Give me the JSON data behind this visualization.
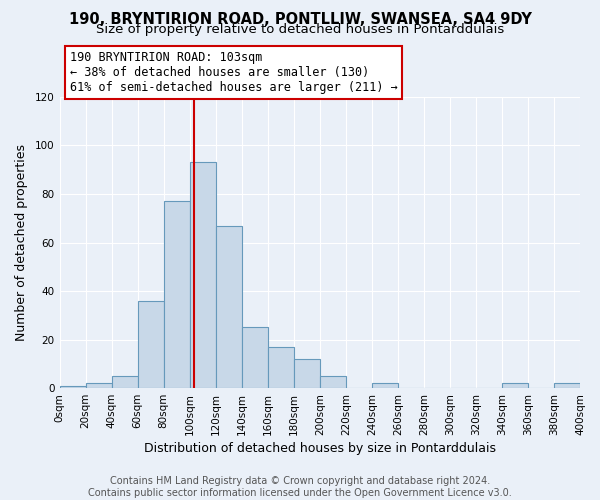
{
  "title": "190, BRYNTIRION ROAD, PONTLLIW, SWANSEA, SA4 9DY",
  "subtitle": "Size of property relative to detached houses in Pontarddulais",
  "xlabel": "Distribution of detached houses by size in Pontarddulais",
  "ylabel": "Number of detached properties",
  "footer_line1": "Contains HM Land Registry data © Crown copyright and database right 2024.",
  "footer_line2": "Contains public sector information licensed under the Open Government Licence v3.0.",
  "bar_edges": [
    0,
    20,
    40,
    60,
    80,
    100,
    120,
    140,
    160,
    180,
    200,
    220,
    240,
    260,
    280,
    300,
    320,
    340,
    360,
    380,
    400
  ],
  "bar_heights": [
    1,
    2,
    5,
    36,
    77,
    93,
    67,
    25,
    17,
    12,
    5,
    0,
    2,
    0,
    0,
    0,
    0,
    2,
    0,
    2
  ],
  "bar_color": "#c8d8e8",
  "bar_edge_color": "#6699bb",
  "vline_x": 103,
  "vline_color": "#cc0000",
  "annotation_line1": "190 BRYNTIRION ROAD: 103sqm",
  "annotation_line2": "← 38% of detached houses are smaller (130)",
  "annotation_line3": "61% of semi-detached houses are larger (211) →",
  "box_edge_color": "#cc0000",
  "ylim": [
    0,
    120
  ],
  "xlim": [
    0,
    400
  ],
  "yticks": [
    0,
    20,
    40,
    60,
    80,
    100,
    120
  ],
  "xtick_positions": [
    0,
    20,
    40,
    60,
    80,
    100,
    120,
    140,
    160,
    180,
    200,
    220,
    240,
    260,
    280,
    300,
    320,
    340,
    360,
    380,
    400
  ],
  "xtick_labels": [
    "0sqm",
    "20sqm",
    "40sqm",
    "60sqm",
    "80sqm",
    "100sqm",
    "120sqm",
    "140sqm",
    "160sqm",
    "180sqm",
    "200sqm",
    "220sqm",
    "240sqm",
    "260sqm",
    "280sqm",
    "300sqm",
    "320sqm",
    "340sqm",
    "360sqm",
    "380sqm",
    "400sqm"
  ],
  "background_color": "#eaf0f8",
  "plot_bg_color": "#eaf0f8",
  "title_fontsize": 10.5,
  "subtitle_fontsize": 9.5,
  "axis_label_fontsize": 9,
  "tick_fontsize": 7.5,
  "annotation_fontsize": 8.5,
  "footer_fontsize": 7
}
